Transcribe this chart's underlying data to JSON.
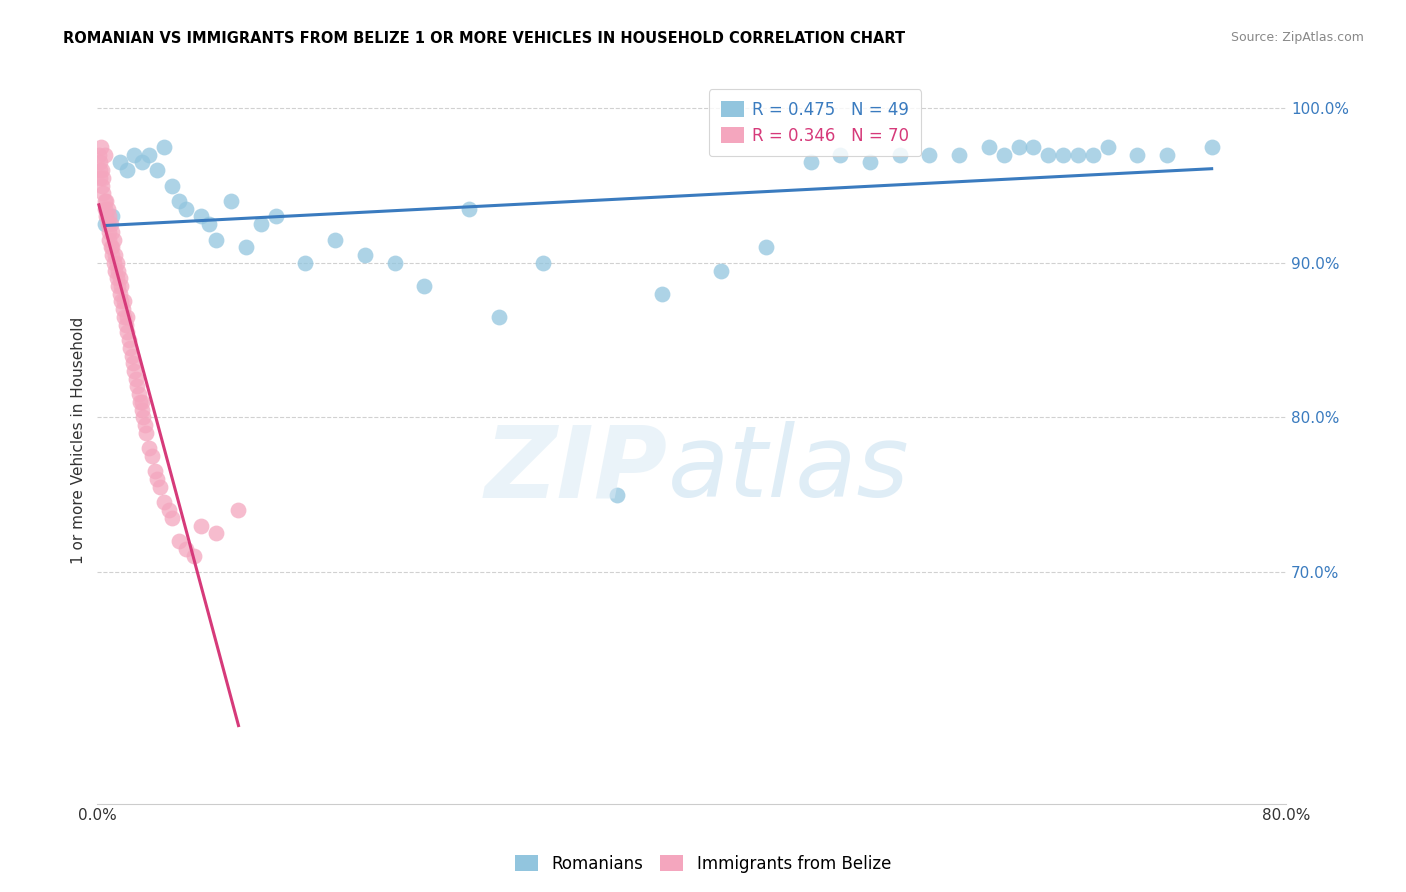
{
  "title": "ROMANIAN VS IMMIGRANTS FROM BELIZE 1 OR MORE VEHICLES IN HOUSEHOLD CORRELATION CHART",
  "source": "Source: ZipAtlas.com",
  "ylabel": "1 or more Vehicles in Household",
  "legend1_text": "R = 0.475   N = 49",
  "legend2_text": "R = 0.346   N = 70",
  "legend_bottom": [
    "Romanians",
    "Immigrants from Belize"
  ],
  "blue_color": "#92c5de",
  "pink_color": "#f4a6be",
  "blue_line_color": "#3a7bbf",
  "pink_line_color": "#d63a7a",
  "xmin": 0.0,
  "xmax": 80.0,
  "ymin": 55.0,
  "ymax": 102.0,
  "blue_dots_x": [
    0.5,
    1.0,
    1.5,
    2.0,
    2.5,
    3.0,
    3.5,
    4.0,
    4.5,
    5.0,
    5.5,
    6.0,
    7.0,
    7.5,
    8.0,
    9.0,
    10.0,
    11.0,
    12.0,
    14.0,
    16.0,
    18.0,
    20.0,
    22.0,
    25.0,
    27.0,
    30.0,
    35.0,
    38.0,
    42.0,
    45.0,
    48.0,
    50.0,
    52.0,
    54.0,
    56.0,
    58.0,
    60.0,
    61.0,
    62.0,
    63.0,
    64.0,
    65.0,
    66.0,
    67.0,
    68.0,
    70.0,
    72.0,
    75.0
  ],
  "blue_dots_y": [
    92.5,
    93.0,
    96.5,
    96.0,
    97.0,
    96.5,
    97.0,
    96.0,
    97.5,
    95.0,
    94.0,
    93.5,
    93.0,
    92.5,
    91.5,
    94.0,
    91.0,
    92.5,
    93.0,
    90.0,
    91.5,
    90.5,
    90.0,
    88.5,
    93.5,
    86.5,
    90.0,
    75.0,
    88.0,
    89.5,
    91.0,
    96.5,
    97.0,
    96.5,
    97.0,
    97.0,
    97.0,
    97.5,
    97.0,
    97.5,
    97.5,
    97.0,
    97.0,
    97.0,
    97.0,
    97.5,
    97.0,
    97.0,
    97.5
  ],
  "pink_dots_x": [
    0.1,
    0.15,
    0.2,
    0.2,
    0.25,
    0.3,
    0.3,
    0.4,
    0.4,
    0.5,
    0.5,
    0.5,
    0.6,
    0.6,
    0.7,
    0.7,
    0.8,
    0.8,
    0.8,
    0.9,
    0.9,
    1.0,
    1.0,
    1.0,
    1.1,
    1.1,
    1.2,
    1.2,
    1.3,
    1.3,
    1.4,
    1.4,
    1.5,
    1.5,
    1.6,
    1.6,
    1.7,
    1.8,
    1.8,
    1.9,
    2.0,
    2.0,
    2.1,
    2.2,
    2.3,
    2.4,
    2.5,
    2.6,
    2.7,
    2.8,
    2.9,
    3.0,
    3.0,
    3.1,
    3.2,
    3.3,
    3.5,
    3.7,
    3.9,
    4.0,
    4.2,
    4.5,
    4.8,
    5.0,
    5.5,
    6.0,
    6.5,
    7.0,
    8.0,
    9.5
  ],
  "pink_dots_y": [
    97.0,
    96.5,
    95.5,
    96.0,
    97.5,
    95.0,
    96.0,
    94.5,
    95.5,
    94.0,
    93.5,
    97.0,
    93.0,
    94.0,
    92.5,
    93.5,
    92.0,
    91.5,
    93.0,
    91.0,
    92.5,
    90.5,
    91.0,
    92.0,
    90.0,
    91.5,
    89.5,
    90.5,
    89.0,
    90.0,
    88.5,
    89.5,
    88.0,
    89.0,
    87.5,
    88.5,
    87.0,
    86.5,
    87.5,
    86.0,
    85.5,
    86.5,
    85.0,
    84.5,
    84.0,
    83.5,
    83.0,
    82.5,
    82.0,
    81.5,
    81.0,
    80.5,
    81.0,
    80.0,
    79.5,
    79.0,
    78.0,
    77.5,
    76.5,
    76.0,
    75.5,
    74.5,
    74.0,
    73.5,
    72.0,
    71.5,
    71.0,
    73.0,
    72.5,
    74.0
  ]
}
